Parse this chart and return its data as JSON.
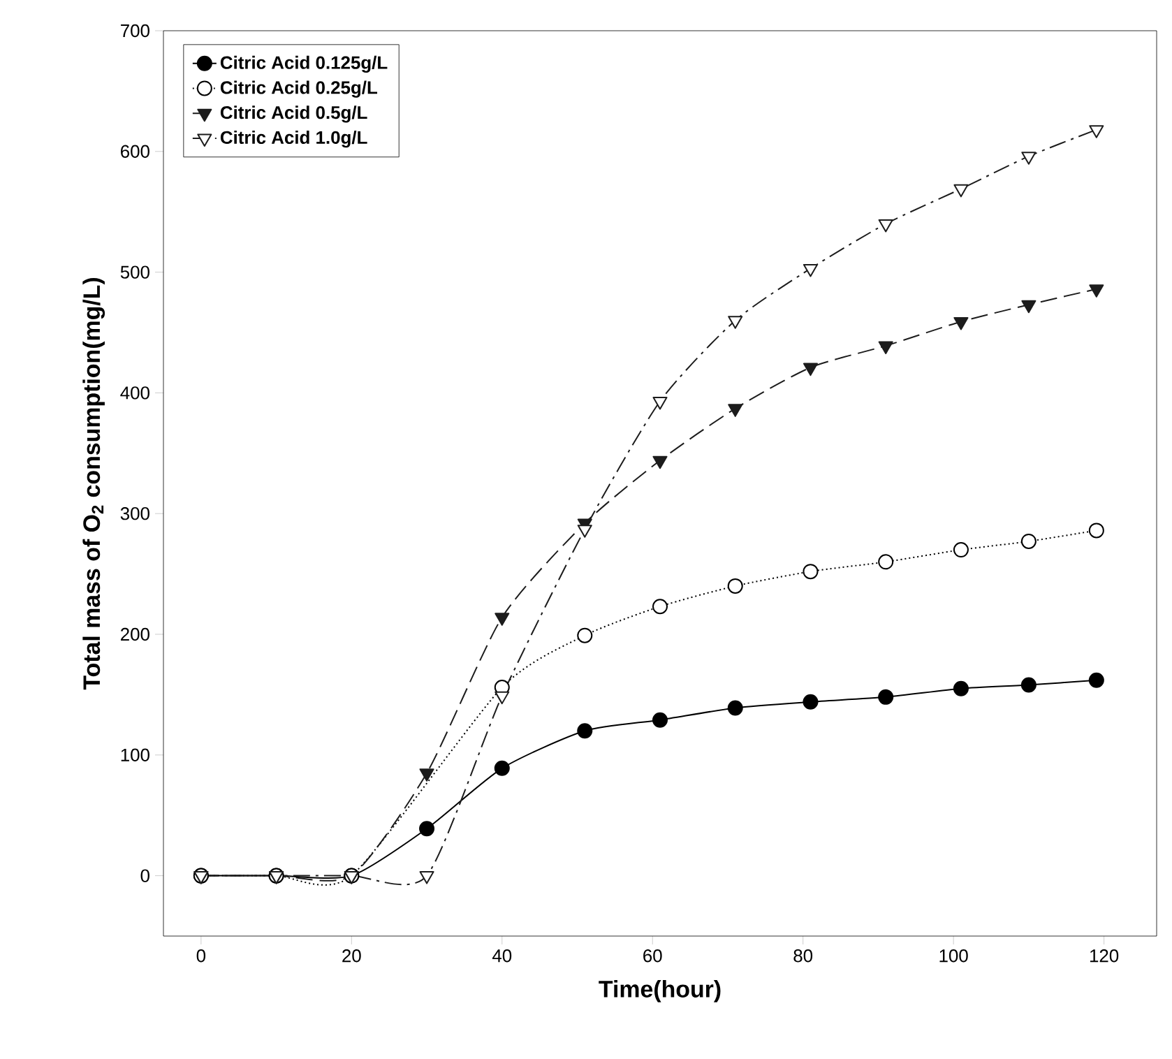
{
  "chart_data": {
    "type": "line",
    "xlabel": "Time(hour)",
    "ylabel": "Total mass of O$_{2}$ consumption(mg/L)",
    "x": [
      0,
      10,
      20,
      30,
      40,
      51,
      61,
      71,
      81,
      91,
      101,
      110,
      119
    ],
    "xlim": [
      -5,
      127
    ],
    "xticks": [
      0,
      20,
      40,
      60,
      80,
      100,
      120
    ],
    "ylim": [
      -50,
      700
    ],
    "yticks": [
      0,
      100,
      200,
      300,
      400,
      500,
      600,
      700
    ],
    "grid": false,
    "legend": "top left",
    "series": [
      {
        "name": "Citric Acid 0.125g/L",
        "color": "#000000",
        "marker": "circle",
        "line_style": "solid",
        "values": [
          0,
          0,
          0,
          39,
          89,
          120,
          129,
          139,
          144,
          148,
          155,
          158,
          162
        ]
      },
      {
        "name": "Citric Acid 0.25g/L",
        "color": "#000000",
        "marker": "circle",
        "line_style": "dotted",
        "values": [
          0,
          0,
          0,
          null,
          156,
          199,
          223,
          240,
          252,
          260,
          270,
          277,
          286
        ]
      },
      {
        "name": "Citric Acid 0.5g/L",
        "color": "#1c1c1c",
        "marker": "triangle",
        "line_style": "dashed",
        "values": [
          0,
          0,
          0,
          85,
          214,
          292,
          344,
          387,
          421,
          439,
          459,
          473,
          486
        ]
      },
      {
        "name": "Citric Acid 1.0g/L",
        "color": "#1c1c1c",
        "marker": "triangle",
        "line_style": "dashdot",
        "values": [
          0,
          0,
          0,
          0,
          149,
          287,
          393,
          460,
          503,
          540,
          569,
          596,
          618
        ]
      }
    ]
  }
}
